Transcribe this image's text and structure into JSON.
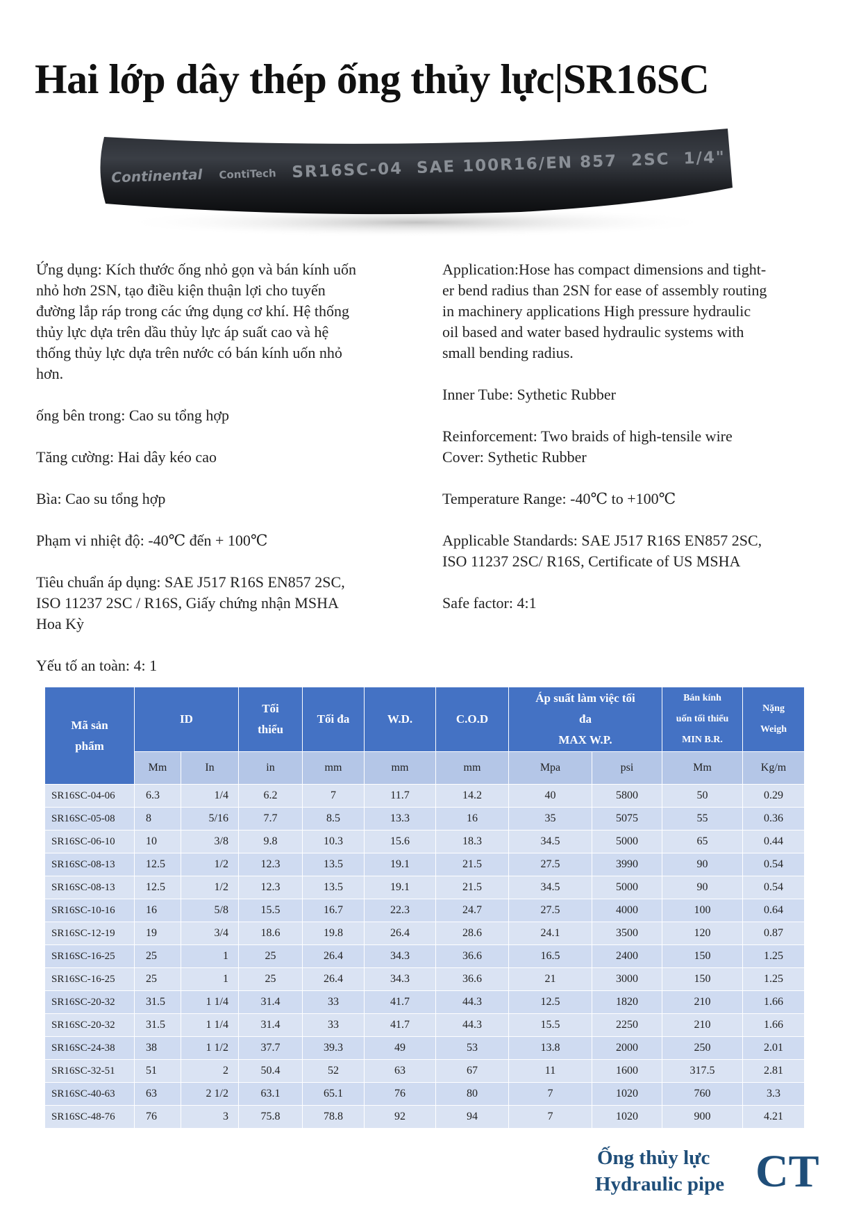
{
  "header": {
    "title": "Hai lớp dây thép ống thủy lực|SR16SC"
  },
  "image": {
    "brand": "Continental",
    "sub_brand": "ContiTech",
    "marking": "SR16SC-04  SAE 100R16/EN 857  2SC  1/4\""
  },
  "left": {
    "paragraphs": [
      [
        "Ứng dụng: Kích thước ống nhỏ gọn và bán kính uốn",
        "nhỏ hơn 2SN, tạo điều kiện thuận lợi cho tuyến",
        "đường lắp ráp trong các ứng dụng cơ khí. Hệ thống",
        "thủy lực dựa trên dầu thủy lực áp suất cao và hệ",
        "thống thủy lực dựa trên nước có bán kính uốn nhỏ",
        "hơn."
      ],
      [
        "ống bên trong: Cao su tổng hợp"
      ],
      [
        "Tăng cường: Hai dây kéo cao"
      ],
      [
        "Bìa: Cao su tổng hợp"
      ],
      [
        "Phạm vi nhiệt độ: -40℃ đến + 100℃"
      ],
      [
        "Tiêu chuẩn áp dụng: SAE J517 R16S EN857 2SC,",
        "ISO 11237 2SC / R16S, Giấy chứng nhận MSHA",
        "Hoa Kỳ"
      ],
      [
        "Yếu tố an toàn: 4: 1"
      ]
    ]
  },
  "right": {
    "paragraphs": [
      [
        "Application:Hose has compact dimensions and tight-",
        "er bend radius than 2SN for ease of assembly routing",
        "in machinery applications High pressure hydraulic",
        "oil based and water based hydraulic systems with",
        "small bending radius."
      ],
      [
        "Inner Tube: Sythetic Rubber"
      ],
      [
        "Reinforcement: Two braids of high-tensile wire",
        "Cover: Sythetic Rubber"
      ],
      [
        "Temperature Range: -40℃ to +100℃"
      ],
      [
        "Applicable Standards: SAE J517 R16S EN857 2SC,",
        "ISO 11237 2SC/ R16S, Certificate of US MSHA"
      ],
      [
        "Safe factor: 4:1"
      ]
    ]
  },
  "table": {
    "header": [
      [
        "Mã sản",
        "phẩm"
      ],
      [
        "ID"
      ],
      [
        "Tối",
        "thiểu"
      ],
      [
        "Tối đa"
      ],
      [
        "W.D."
      ],
      [
        "C.O.D"
      ],
      [
        "Áp suất làm việc tối",
        "đa",
        "MAX W.P."
      ],
      [
        "Bán kính",
        "uốn tối thiểu",
        "MIN B.R."
      ],
      [
        "Nặng",
        "Weigh"
      ]
    ],
    "units": [
      "Mm",
      "In",
      "in",
      "mm",
      "mm",
      "mm",
      "Mpa",
      "psi",
      "Mm",
      "Kg/m"
    ],
    "rows": [
      [
        "SR16SC-04-06",
        "6.3",
        "1/4",
        "6.2",
        "7",
        "11.7",
        "14.2",
        "40",
        "5800",
        "50",
        "0.29"
      ],
      [
        "SR16SC-05-08",
        "8",
        "5/16",
        "7.7",
        "8.5",
        "13.3",
        "16",
        "35",
        "5075",
        "55",
        "0.36"
      ],
      [
        "SR16SC-06-10",
        "10",
        "3/8",
        "9.8",
        "10.3",
        "15.6",
        "18.3",
        "34.5",
        "5000",
        "65",
        "0.44"
      ],
      [
        "SR16SC-08-13",
        "12.5",
        "1/2",
        "12.3",
        "13.5",
        "19.1",
        "21.5",
        "27.5",
        "3990",
        "90",
        "0.54"
      ],
      [
        "SR16SC-08-13",
        "12.5",
        "1/2",
        "12.3",
        "13.5",
        "19.1",
        "21.5",
        "34.5",
        "5000",
        "90",
        "0.54"
      ],
      [
        "SR16SC-10-16",
        "16",
        "5/8",
        "15.5",
        "16.7",
        "22.3",
        "24.7",
        "27.5",
        "4000",
        "100",
        "0.64"
      ],
      [
        "SR16SC-12-19",
        "19",
        "3/4",
        "18.6",
        "19.8",
        "26.4",
        "28.6",
        "24.1",
        "3500",
        "120",
        "0.87"
      ],
      [
        "SR16SC-16-25",
        "25",
        "1",
        "25",
        "26.4",
        "34.3",
        "36.6",
        "16.5",
        "2400",
        "150",
        "1.25"
      ],
      [
        "SR16SC-16-25",
        "25",
        "1",
        "25",
        "26.4",
        "34.3",
        "36.6",
        "21",
        "3000",
        "150",
        "1.25"
      ],
      [
        "SR16SC-20-32",
        "31.5",
        "1 1/4",
        "31.4",
        "33",
        "41.7",
        "44.3",
        "12.5",
        "1820",
        "210",
        "1.66"
      ],
      [
        "SR16SC-20-32",
        "31.5",
        "1 1/4",
        "31.4",
        "33",
        "41.7",
        "44.3",
        "15.5",
        "2250",
        "210",
        "1.66"
      ],
      [
        "SR16SC-24-38",
        "38",
        "1 1/2",
        "37.7",
        "39.3",
        "49",
        "53",
        "13.8",
        "2000",
        "250",
        "2.01"
      ],
      [
        "SR16SC-32-51",
        "51",
        "2",
        "50.4",
        "52",
        "63",
        "67",
        "11",
        "1600",
        "317.5",
        "2.81"
      ],
      [
        "SR16SC-40-63",
        "63",
        "2 1/2",
        "63.1",
        "65.1",
        "76",
        "80",
        "7",
        "1020",
        "760",
        "3.3"
      ],
      [
        "SR16SC-48-76",
        "76",
        "3",
        "75.8",
        "78.8",
        "92",
        "94",
        "7",
        "1020",
        "900",
        "4.21"
      ]
    ]
  },
  "footer": {
    "line1": "Ống thủy lực",
    "line2": "Hydraulic pipe",
    "logo": "CT"
  }
}
